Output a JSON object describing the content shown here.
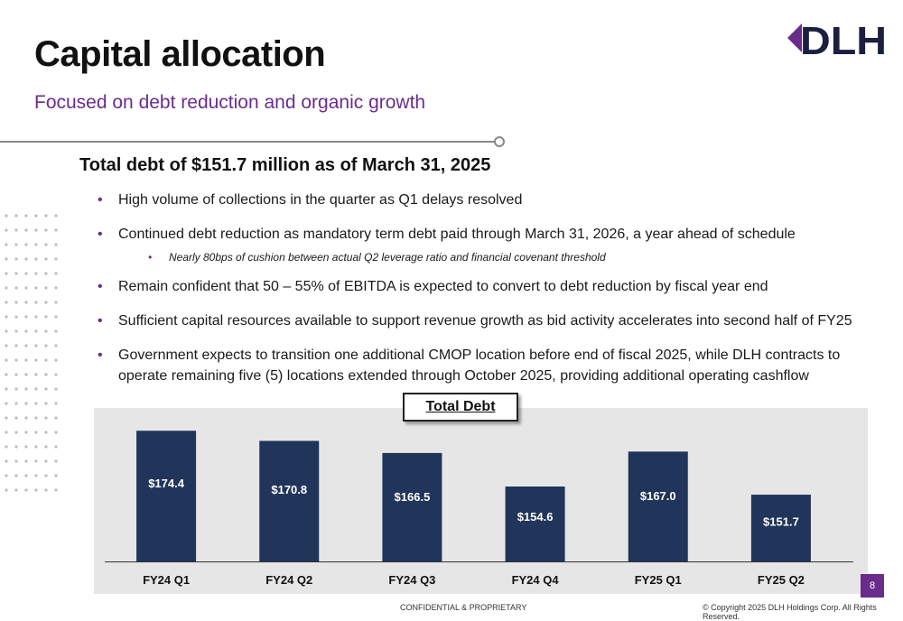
{
  "header": {
    "title": "Capital allocation",
    "subtitle": "Focused on debt reduction and organic growth",
    "logo_text": "DLH"
  },
  "main": {
    "headline": "Total debt of $151.7 million as of March 31, 2025",
    "bullets": [
      "High volume of collections in the quarter as Q1 delays resolved",
      "Continued debt reduction as mandatory term debt paid through March 31, 2026, a year ahead of schedule",
      "Nearly 80bps of cushion between actual Q2 leverage ratio and financial covenant threshold",
      "Remain confident that 50 – 55% of EBITDA is expected to convert to debt reduction by fiscal year end",
      "Sufficient capital resources available to support revenue growth as bid activity accelerates into second half of FY25",
      "Government expects to transition one additional CMOP location before end of fiscal 2025, while DLH contracts to operate remaining five (5) locations extended through October 2025, providing additional operating cashflow"
    ]
  },
  "chart_data": {
    "type": "bar",
    "title": "Total Debt",
    "categories": [
      "FY24 Q1",
      "FY24 Q2",
      "FY24 Q3",
      "FY24 Q4",
      "FY25 Q1",
      "FY25 Q2"
    ],
    "values": [
      174.4,
      170.8,
      166.5,
      154.6,
      167.0,
      151.7
    ],
    "value_labels": [
      "$174.4",
      "$170.8",
      "$166.5",
      "$154.6",
      "$167.0",
      "$151.7"
    ],
    "ylim": [
      128,
      178
    ],
    "grid": false,
    "bar_color": "#213459",
    "label_color": "#ffffff"
  },
  "footer": {
    "confidential": "CONFIDENTIAL & PROPRIETARY",
    "copyright": "© Copyright 2025 DLH Holdings Corp. All Rights Reserved.",
    "page_number": "8"
  },
  "colors": {
    "accent": "#6a2c8c",
    "navy": "#1c1f3f",
    "chart_bg": "#e6e6e6"
  }
}
